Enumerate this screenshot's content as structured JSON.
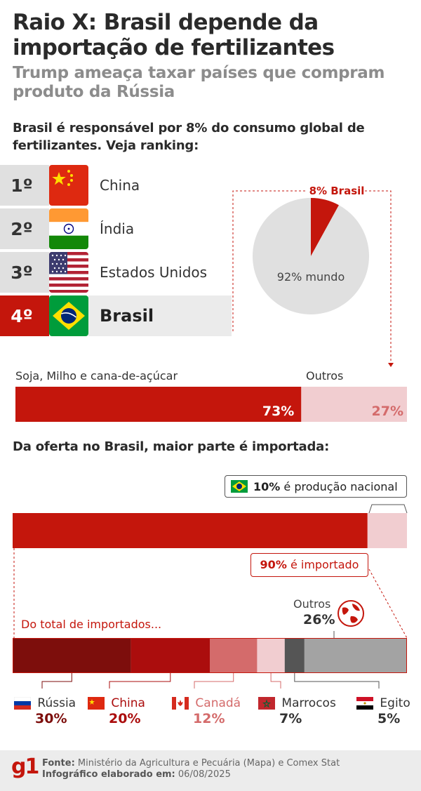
{
  "header": {
    "title": "Raio X: Brasil depende da importação de fertilizantes",
    "subtitle": "Trump ameaça taxar países que compram produto da Rússia"
  },
  "ranking": {
    "heading": "Brasil é responsável por 8% do consumo global de fertilizantes. Veja ranking:",
    "items": [
      {
        "rank": "1º",
        "country": "China",
        "flag": "china-flag-icon"
      },
      {
        "rank": "2º",
        "country": "Índia",
        "flag": "india-flag-icon"
      },
      {
        "rank": "3º",
        "country": "Estados Unidos",
        "flag": "usa-flag-icon"
      },
      {
        "rank": "4º",
        "country": "Brasil",
        "flag": "brazil-flag-icon"
      }
    ]
  },
  "colors": {
    "red": "#c4160c",
    "dark_red": "#7d0e0c",
    "mid_red": "#ab0d0d",
    "light_red": "#d46b6b",
    "pale_red": "#f1cdd0",
    "dark_gray": "#555555",
    "gray": "#a3a3a3",
    "light_gray": "#e0e0e0"
  },
  "chart_data": [
    {
      "type": "pie",
      "labels": [
        "8% Brasil",
        "92% mundo"
      ],
      "values": [
        8,
        92
      ],
      "colors": [
        "#c4160c",
        "#e0e0e0"
      ]
    },
    {
      "type": "bar",
      "orientation": "horizontal-stacked",
      "categories": [
        "Soja, Milho e cana-de-açúcar",
        "Outros"
      ],
      "values": [
        73,
        27
      ],
      "value_labels": [
        "73%",
        "27%"
      ],
      "colors": [
        "#c4160c",
        "#f1cdd0"
      ]
    },
    {
      "type": "bar",
      "orientation": "horizontal-stacked",
      "title": "Da oferta no Brasil, maior parte é importada:",
      "categories": [
        "importado",
        "produção nacional"
      ],
      "values": [
        90,
        10
      ],
      "annotations": [
        {
          "pct": "10%",
          "text": "é produção nacional"
        },
        {
          "pct": "90%",
          "text": "é importado"
        }
      ],
      "colors": [
        "#c4160c",
        "#f1cdd0"
      ]
    },
    {
      "type": "bar",
      "orientation": "horizontal-stacked",
      "title": "Do total de importados...",
      "categories": [
        "Rússia",
        "China",
        "Canadá",
        "Marrocos",
        "Egito",
        "Outros"
      ],
      "values": [
        30,
        20,
        12,
        7,
        5,
        26
      ],
      "value_labels": [
        "30%",
        "20%",
        "12%",
        "7%",
        "5%",
        "26%"
      ],
      "colors": [
        "#7d0e0c",
        "#ab0d0d",
        "#d46b6b",
        "#f1cdd0",
        "#555555",
        "#a3a3a3"
      ],
      "flags": [
        "russia-flag-icon",
        "china-flag-icon",
        "canada-flag-icon",
        "morocco-flag-icon",
        "egypt-flag-icon",
        "globe-icon"
      ]
    }
  ],
  "supply": {
    "heading": "Da oferta no Brasil, maior parte é importada:",
    "national_pct": "10%",
    "national_text": "é produção nacional",
    "imported_pct": "90%",
    "imported_text": "é importado"
  },
  "imports": {
    "heading": "Do total de importados...",
    "others_label": "Outros",
    "others_value": "26%"
  },
  "footer": {
    "logo": "g1",
    "source_label": "Fonte:",
    "source_text": "Ministério da Agricultura e Pecuária (Mapa) e Comex Stat",
    "date_label": "Infográfico elaborado em:",
    "date_text": "06/08/2025"
  }
}
